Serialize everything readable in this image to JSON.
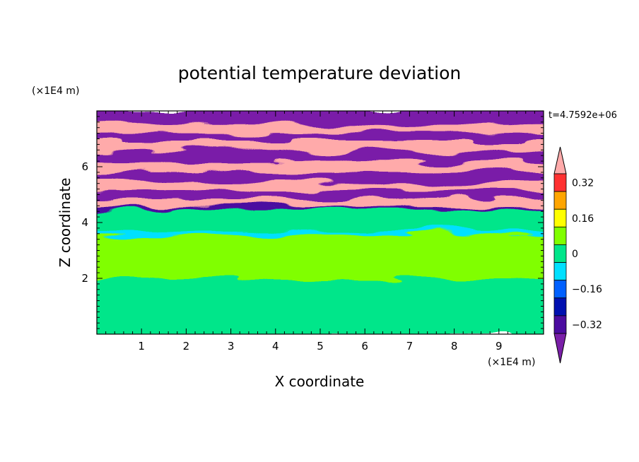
{
  "chart_data": {
    "type": "heatmap",
    "title": "potential temperature deviation",
    "xlabel": "X coordinate",
    "ylabel": "Z coordinate",
    "x_unit": "(×1E4 m)",
    "y_unit": "(×1E4 m)",
    "time_label": "t=4.7592e+06",
    "xlim": [
      0,
      10
    ],
    "ylim": [
      0,
      8
    ],
    "x_ticks": [
      1,
      2,
      3,
      4,
      5,
      6,
      7,
      8,
      9
    ],
    "y_ticks": [
      2,
      4,
      6
    ],
    "colorbar": {
      "levels": [
        -0.4,
        -0.32,
        -0.24,
        -0.16,
        -0.08,
        0,
        0.08,
        0.16,
        0.24,
        0.32,
        0.4
      ],
      "tick_labels": [
        "0.32",
        "0.16",
        "0",
        "−0.16",
        "−0.32"
      ],
      "tick_values": [
        0.32,
        0.16,
        0,
        -0.16,
        -0.32
      ],
      "colors": [
        "#7a1fa8",
        "#4b0ca0",
        "#0010b0",
        "#0060ff",
        "#00e0ff",
        "#00e68a",
        "#80ff00",
        "#ffff00",
        "#ffa500",
        "#ff3030",
        "#ffaaaa"
      ],
      "extend": "both"
    },
    "bands": [
      {
        "z": [
          0.0,
          2.0
        ],
        "level": 0.0
      },
      {
        "z": [
          2.0,
          3.6
        ],
        "level": 0.08
      },
      {
        "z": [
          3.6,
          3.75
        ],
        "level": -0.08
      },
      {
        "z": [
          3.75,
          4.5
        ],
        "level": 0.0
      },
      {
        "z": [
          4.5,
          4.6
        ],
        "level": -0.32
      },
      {
        "z": [
          4.6,
          4.9
        ],
        "level": 0.4
      },
      {
        "z": [
          4.9,
          5.2
        ],
        "level": -0.4
      },
      {
        "z": [
          5.2,
          5.5
        ],
        "level": 0.4
      },
      {
        "z": [
          5.5,
          5.85
        ],
        "level": -0.4
      },
      {
        "z": [
          5.85,
          6.2
        ],
        "level": 0.4
      },
      {
        "z": [
          6.2,
          6.6
        ],
        "level": -0.4
      },
      {
        "z": [
          6.6,
          7.0
        ],
        "level": 0.4
      },
      {
        "z": [
          7.0,
          7.3
        ],
        "level": -0.4
      },
      {
        "z": [
          7.3,
          7.55
        ],
        "level": 0.4
      },
      {
        "z": [
          7.55,
          8.0
        ],
        "level": -0.4
      }
    ]
  }
}
